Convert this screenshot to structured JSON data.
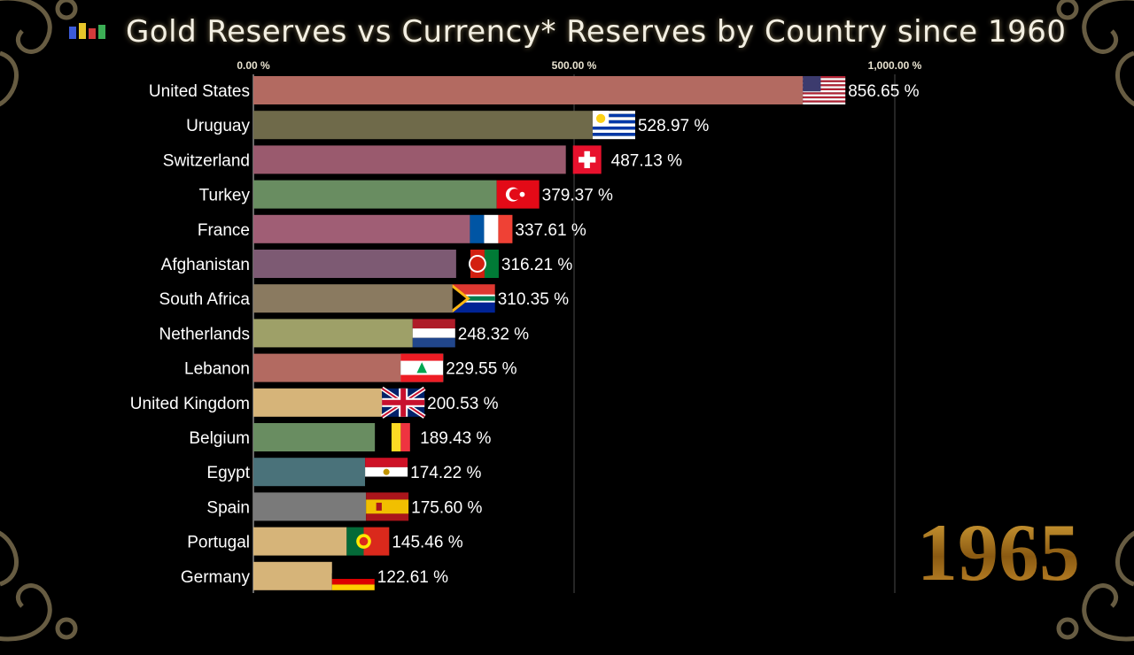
{
  "title": "Gold Reserves vs Currency* Reserves by Country since 1960",
  "year": "1965",
  "chart_data": {
    "type": "bar",
    "orientation": "horizontal",
    "title": "Gold Reserves vs Currency* Reserves by Country since 1960",
    "xlim": [
      0,
      1000
    ],
    "x_ticks": [
      0,
      500,
      1000
    ],
    "x_tick_labels": [
      "0.00 %",
      "500.00 %",
      "1,000.00 %"
    ],
    "grid": true,
    "categories": [
      "United States",
      "Uruguay",
      "Switzerland",
      "Turkey",
      "France",
      "Afghanistan",
      "South Africa",
      "Netherlands",
      "Lebanon",
      "United Kingdom",
      "Belgium",
      "Egypt",
      "Spain",
      "Portugal",
      "Germany"
    ],
    "values": [
      856.65,
      528.97,
      487.13,
      379.37,
      337.61,
      316.21,
      310.35,
      248.32,
      229.55,
      200.53,
      189.43,
      174.22,
      175.6,
      145.46,
      122.61
    ],
    "value_labels": [
      "856.65 %",
      "528.97 %",
      "487.13 %",
      "379.37 %",
      "337.61 %",
      "316.21 %",
      "310.35 %",
      "248.32 %",
      "229.55 %",
      "200.53 %",
      "189.43 %",
      "174.22 %",
      "175.60 %",
      "145.46 %",
      "122.61 %"
    ],
    "bar_colors": [
      "#b36a61",
      "#6f6a4a",
      "#9a5a6e",
      "#698d61",
      "#a05e75",
      "#7d5a73",
      "#8a7a60",
      "#9ea068",
      "#b36a61",
      "#d6b479",
      "#698d61",
      "#4a727a",
      "#7a7a7a",
      "#d6b479",
      "#d6b479"
    ],
    "flags": [
      "us-flag-icon",
      "uruguay-flag-icon",
      "switzerland-flag-icon",
      "turkey-flag-icon",
      "france-flag-icon",
      "afghanistan-flag-icon",
      "south-africa-flag-icon",
      "netherlands-flag-icon",
      "lebanon-flag-icon",
      "uk-flag-icon",
      "belgium-flag-icon",
      "egypt-flag-icon",
      "spain-flag-icon",
      "portugal-flag-icon",
      "germany-flag-icon"
    ]
  }
}
